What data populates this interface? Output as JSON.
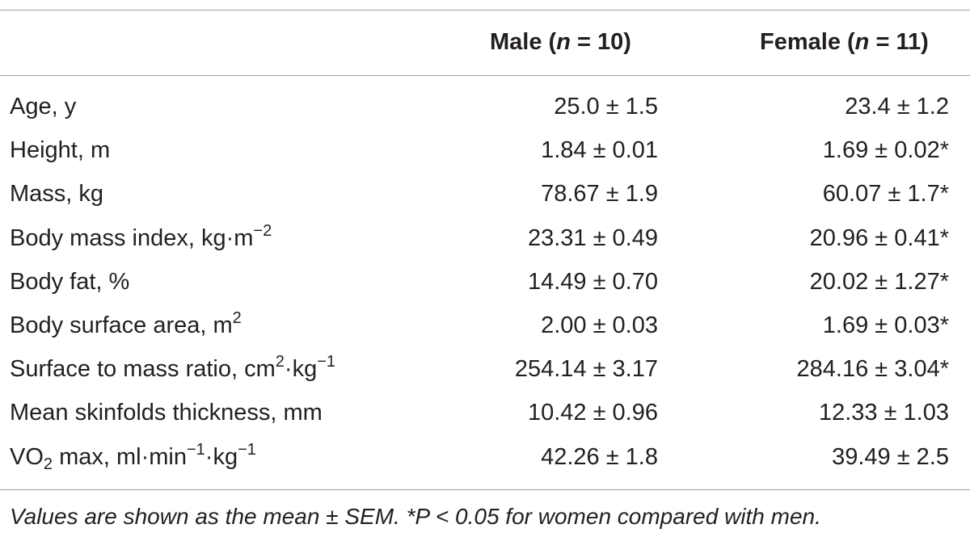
{
  "table": {
    "headers": {
      "col_male": "Male (n = 10)",
      "col_female": "Female (n = 11)"
    },
    "rows": [
      {
        "label": "Age, y",
        "male": "25.0 ± 1.5",
        "female": "23.4 ± 1.2"
      },
      {
        "label": "Height, m",
        "male": "1.84 ± 0.01",
        "female": "1.69 ± 0.02*"
      },
      {
        "label": "Mass, kg",
        "male": "78.67 ± 1.9",
        "female": "60.07 ± 1.7*"
      },
      {
        "label": "Body mass index, kg·m−2",
        "male": "23.31 ± 0.49",
        "female": "20.96 ± 0.41*"
      },
      {
        "label": "Body fat, %",
        "male": "14.49 ± 0.70",
        "female": "20.02 ± 1.27*"
      },
      {
        "label": "Body surface area, m2",
        "male": "2.00 ± 0.03",
        "female": "1.69 ± 0.03*"
      },
      {
        "label": "Surface to mass ratio, cm2·kg−1",
        "male": "254.14 ± 3.17",
        "female": "284.16 ± 3.04*"
      },
      {
        "label": "Mean skinfolds thickness, mm",
        "male": "10.42 ± 0.96",
        "female": "12.33 ± 1.03"
      },
      {
        "label": "VO2 max, ml·min−1·kg−1",
        "male": "42.26 ± 1.8",
        "female": "39.49 ± 2.5"
      }
    ],
    "footnote": "Values are shown as the mean ± SEM. *P < 0.05 for women compared with men."
  }
}
